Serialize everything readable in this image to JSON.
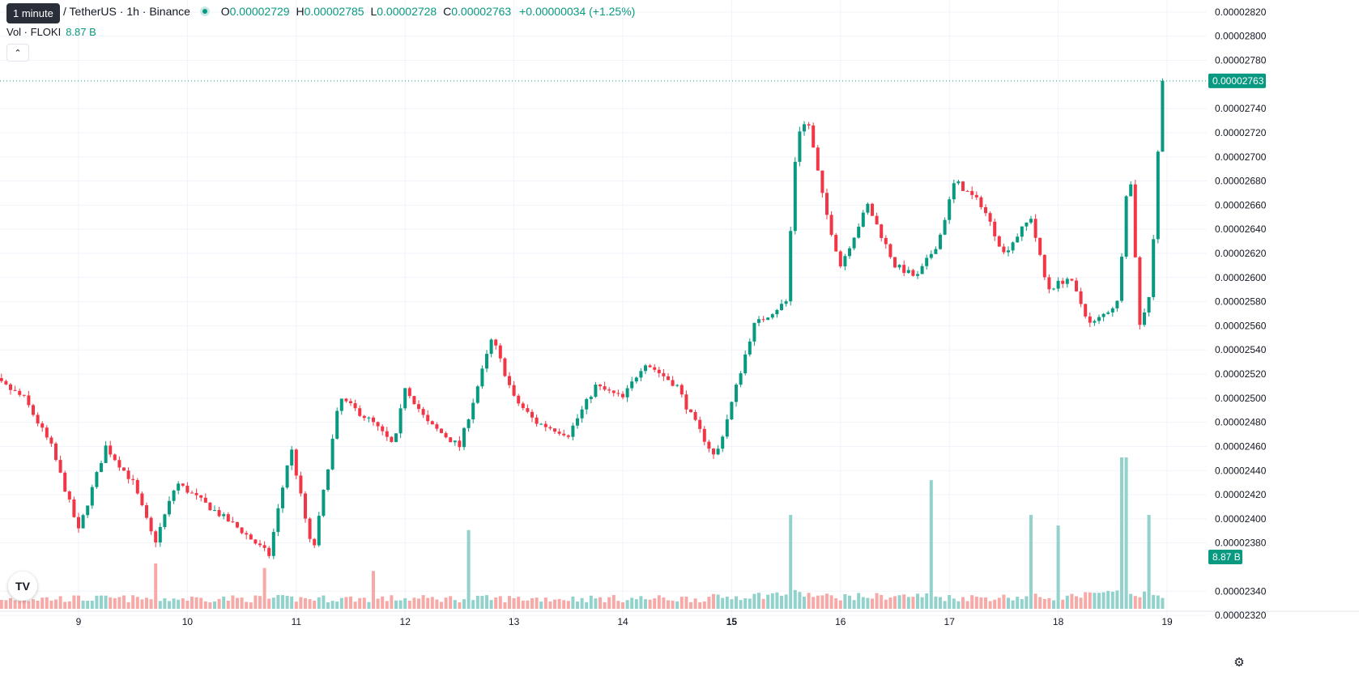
{
  "legend": {
    "tooltip": "1 minute",
    "symbol": "/ TetherUS · 1h · Binance",
    "open_label": "O",
    "open": "0.00002729",
    "high_label": "H",
    "high": "0.00002785",
    "low_label": "L",
    "low": "0.00002728",
    "close_label": "C",
    "close": "0.00002763",
    "change": "+0.00000034 (+1.25%)"
  },
  "volume_legend": {
    "label": "Vol · FLOKI",
    "value": "8.87 B"
  },
  "last_price_label": "0.00002763",
  "last_volume_label": "8.87 B",
  "icons": {
    "collapse": "chevron-up-icon",
    "logo": "tradingview-logo",
    "settings": "settings-icon"
  },
  "logo_text": "TV",
  "colors": {
    "up": "#089981",
    "down": "#f23645",
    "up_vol": "#92d2cc",
    "down_vol": "#f7a9a7"
  },
  "chart_data": {
    "type": "candlestick",
    "symbol": "TetherUS",
    "interval": "1h",
    "exchange": "Binance",
    "x_ticks": [
      "9",
      "10",
      "11",
      "12",
      "13",
      "14",
      "15",
      "16",
      "17",
      "18",
      "19"
    ],
    "x_ticks_bold": [
      "15"
    ],
    "y_ticks": [
      "0.00002820",
      "0.00002800",
      "0.00002780",
      "0.00002740",
      "0.00002720",
      "0.00002700",
      "0.00002680",
      "0.00002660",
      "0.00002640",
      "0.00002620",
      "0.00002600",
      "0.00002580",
      "0.00002560",
      "0.00002540",
      "0.00002520",
      "0.00002500",
      "0.00002480",
      "0.00002460",
      "0.00002440",
      "0.00002420",
      "0.00002400",
      "0.00002380",
      "0.00002340",
      "0.00002320"
    ],
    "y_range": [
      2.31e-05,
      2.83e-05
    ],
    "grid": true,
    "keypoints": [
      [
        8.0,
        2.45e-05
      ],
      [
        8.15,
        2.52e-05
      ],
      [
        8.5,
        2.5e-05
      ],
      [
        8.75,
        2.46e-05
      ],
      [
        9.0,
        2.39e-05
      ],
      [
        9.25,
        2.46e-05
      ],
      [
        9.5,
        2.43e-05
      ],
      [
        9.7,
        2.38e-05
      ],
      [
        9.9,
        2.43e-05
      ],
      [
        10.2,
        2.41e-05
      ],
      [
        10.5,
        2.39e-05
      ],
      [
        10.75,
        2.37e-05
      ],
      [
        10.95,
        2.46e-05
      ],
      [
        11.15,
        2.37e-05
      ],
      [
        11.4,
        2.5e-05
      ],
      [
        11.7,
        2.48e-05
      ],
      [
        11.9,
        2.46e-05
      ],
      [
        12.0,
        2.51e-05
      ],
      [
        12.2,
        2.48e-05
      ],
      [
        12.5,
        2.46e-05
      ],
      [
        12.6,
        2.49e-05
      ],
      [
        12.8,
        2.55e-05
      ],
      [
        13.0,
        2.5e-05
      ],
      [
        13.2,
        2.48e-05
      ],
      [
        13.5,
        2.47e-05
      ],
      [
        13.75,
        2.51e-05
      ],
      [
        14.0,
        2.5e-05
      ],
      [
        14.2,
        2.53e-05
      ],
      [
        14.5,
        2.51e-05
      ],
      [
        14.6,
        2.49e-05
      ],
      [
        14.85,
        2.45e-05
      ],
      [
        14.95,
        2.48e-05
      ],
      [
        15.2,
        2.56e-05
      ],
      [
        15.5,
        2.58e-05
      ],
      [
        15.6,
        2.72e-05
      ],
      [
        15.7,
        2.73e-05
      ],
      [
        15.85,
        2.66e-05
      ],
      [
        16.0,
        2.61e-05
      ],
      [
        16.25,
        2.66e-05
      ],
      [
        16.5,
        2.61e-05
      ],
      [
        16.7,
        2.6e-05
      ],
      [
        16.9,
        2.63e-05
      ],
      [
        17.05,
        2.68e-05
      ],
      [
        17.3,
        2.66e-05
      ],
      [
        17.5,
        2.62e-05
      ],
      [
        17.75,
        2.65e-05
      ],
      [
        17.9,
        2.59e-05
      ],
      [
        18.1,
        2.6e-05
      ],
      [
        18.3,
        2.56e-05
      ],
      [
        18.55,
        2.58e-05
      ],
      [
        18.65,
        2.7e-05
      ],
      [
        18.75,
        2.56e-05
      ],
      [
        18.85,
        2.59e-05
      ],
      [
        18.95,
        2.76e-05
      ]
    ],
    "volume_series": [
      [
        8.0,
        0.02
      ],
      [
        14.7,
        0.02
      ],
      [
        15.6,
        0.08
      ],
      [
        15.85,
        0.04
      ],
      [
        16.8,
        0.05
      ],
      [
        17.0,
        0.03
      ],
      [
        18.1,
        0.04
      ],
      [
        18.6,
        0.09
      ],
      [
        18.95,
        0.03
      ]
    ],
    "volume_peaks": [
      {
        "x": 9.7,
        "v": 0.3,
        "dir": "up"
      },
      {
        "x": 10.7,
        "v": 0.27,
        "dir": "down"
      },
      {
        "x": 11.7,
        "v": 0.25,
        "dir": "up"
      },
      {
        "x": 12.58,
        "v": 0.52,
        "dir": "up"
      },
      {
        "x": 15.55,
        "v": 0.62,
        "dir": "up"
      },
      {
        "x": 16.82,
        "v": 0.85,
        "dir": "up"
      },
      {
        "x": 17.75,
        "v": 0.62,
        "dir": "down"
      },
      {
        "x": 18.0,
        "v": 0.55,
        "dir": "up"
      },
      {
        "x": 18.6,
        "v": 1.0,
        "dir": "down"
      },
      {
        "x": 18.82,
        "v": 0.62,
        "dir": "up"
      }
    ],
    "close": 2.763e-05
  }
}
